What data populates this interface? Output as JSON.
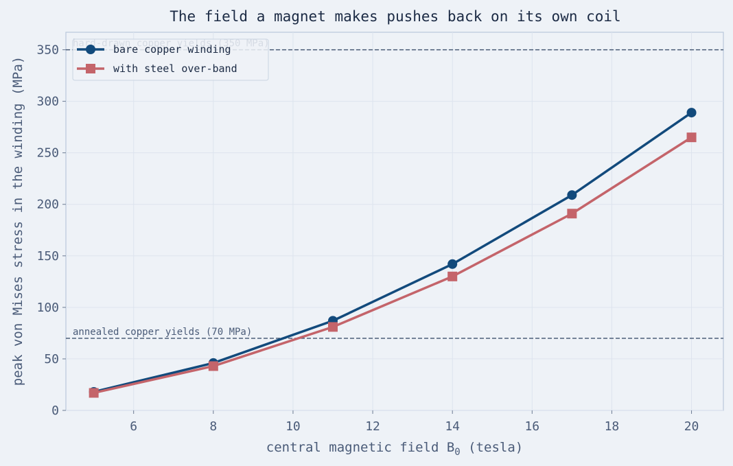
{
  "chart_data": {
    "type": "line",
    "title": "The field a magnet makes pushes back on its own coil",
    "xlabel": "central magnetic field  B",
    "xlabel_subscript": "0",
    "xlabel_suffix": "  (tesla)",
    "ylabel": "peak von Mises stress in the winding  (MPa)",
    "xlim": [
      4.3,
      20.8
    ],
    "ylim": [
      0,
      367
    ],
    "xticks": [
      6,
      8,
      10,
      12,
      14,
      16,
      18,
      20
    ],
    "yticks": [
      0,
      50,
      100,
      150,
      200,
      250,
      300,
      350
    ],
    "grid": true,
    "legend_position": "top-left",
    "x": [
      5,
      8,
      11,
      14,
      17,
      20
    ],
    "series": [
      {
        "name": "bare copper winding",
        "marker": "circle",
        "color": "#124a7c",
        "values": [
          18,
          46,
          87,
          142,
          209,
          289
        ]
      },
      {
        "name": "with steel over-band",
        "marker": "square",
        "color": "#c4646a",
        "values": [
          17,
          43,
          81,
          130,
          191,
          265
        ]
      }
    ],
    "reference_lines": [
      {
        "label": "hard-drawn copper yields (350 MPa)",
        "y": 350
      },
      {
        "label": "annealed copper yields (70 MPa)",
        "y": 70
      }
    ]
  }
}
